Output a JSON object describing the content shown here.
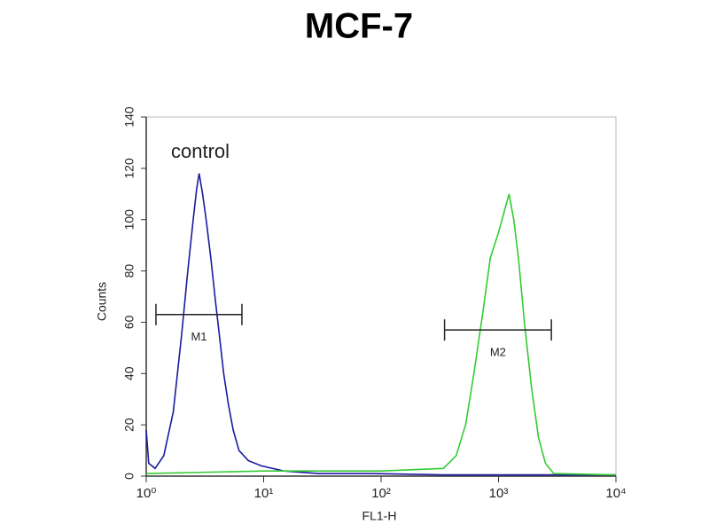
{
  "chart_data": {
    "type": "line",
    "title": "MCF-7",
    "xlabel": "FL1-H",
    "ylabel": "Counts",
    "xscale": "log",
    "xlim": [
      1,
      10000
    ],
    "xticks": [
      {
        "value": 1,
        "label": "10⁰"
      },
      {
        "value": 10,
        "label": "10¹"
      },
      {
        "value": 100,
        "label": "10²"
      },
      {
        "value": 1000,
        "label": "10³"
      },
      {
        "value": 10000,
        "label": "10⁴"
      }
    ],
    "ylim": [
      0,
      140
    ],
    "yticks": [
      0,
      20,
      40,
      60,
      80,
      100,
      120,
      140
    ],
    "series": [
      {
        "name": "control",
        "color": "#1a1a9e",
        "x": [
          1,
          1.05,
          1.19,
          1.41,
          1.7,
          2,
          2.26,
          2.51,
          2.69,
          2.82,
          3.02,
          3.24,
          3.55,
          3.89,
          4.27,
          4.57,
          5.01,
          5.5,
          6.17,
          7.41,
          9.55,
          14.8,
          29.5,
          83.2,
          339,
          1905,
          10000
        ],
        "values": [
          18,
          5,
          3,
          8,
          25,
          55,
          80,
          100,
          112,
          118,
          110,
          100,
          85,
          68,
          52,
          40,
          28,
          18,
          10,
          6,
          4,
          2,
          1,
          1,
          0.5,
          0.5,
          0.5
        ]
      },
      {
        "color": "#33cc33",
        "x": [
          1,
          10,
          100,
          339,
          436,
          525,
          617,
          741,
          851,
          1000,
          1148,
          1230,
          1349,
          1479,
          1660,
          1905,
          2188,
          2512,
          2951,
          10000
        ],
        "values": [
          1,
          2,
          2,
          3,
          8,
          20,
          40,
          65,
          85,
          95,
          105,
          110,
          100,
          85,
          60,
          35,
          15,
          5,
          1,
          0.5
        ]
      }
    ],
    "markers": [
      {
        "label": "M1",
        "range": [
          1.21,
          6.53
        ],
        "y": 63
      },
      {
        "label": "M2",
        "range": [
          347,
          2818
        ],
        "y": 57
      }
    ]
  }
}
